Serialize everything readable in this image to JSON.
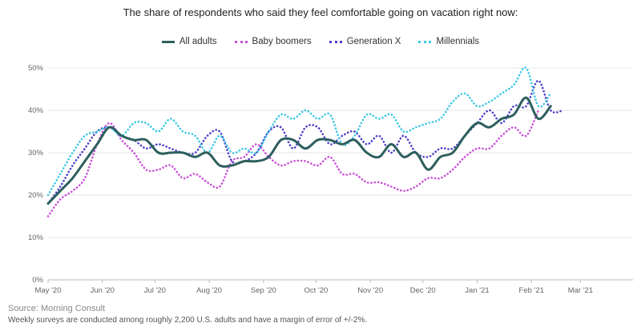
{
  "chart_data": {
    "type": "line",
    "title": "The share of respondents who said they feel comfortable going on vacation right now:",
    "ylim": [
      0,
      50
    ],
    "yticks": [
      0,
      10,
      20,
      30,
      40,
      50
    ],
    "ytick_labels": [
      "0%",
      "10%",
      "20%",
      "30%",
      "40%",
      "50%"
    ],
    "x_start": "2020-05-01",
    "x_end": "2021-03-31",
    "xticks": [
      {
        "date": "2020-05-01",
        "label": "May '20"
      },
      {
        "date": "2020-06-01",
        "label": "Jun '20"
      },
      {
        "date": "2020-07-01",
        "label": "Jul '20"
      },
      {
        "date": "2020-08-01",
        "label": "Aug '20"
      },
      {
        "date": "2020-09-01",
        "label": "Sep '20"
      },
      {
        "date": "2020-10-01",
        "label": "Oct '20"
      },
      {
        "date": "2020-11-01",
        "label": "Nov '20"
      },
      {
        "date": "2020-12-01",
        "label": "Dec '20"
      },
      {
        "date": "2021-01-01",
        "label": "Jan '21"
      },
      {
        "date": "2021-02-01",
        "label": "Feb '21"
      },
      {
        "date": "2021-03-01",
        "label": "Mar '21"
      }
    ],
    "grid": true,
    "legend_position": "top-center",
    "dates": [
      "2020-05-01",
      "2020-05-08",
      "2020-05-15",
      "2020-05-22",
      "2020-05-29",
      "2020-06-05",
      "2020-06-12",
      "2020-06-19",
      "2020-06-26",
      "2020-07-03",
      "2020-07-10",
      "2020-07-17",
      "2020-07-24",
      "2020-07-31",
      "2020-08-07",
      "2020-08-14",
      "2020-08-21",
      "2020-08-28",
      "2020-09-04",
      "2020-09-11",
      "2020-09-18",
      "2020-09-25",
      "2020-10-02",
      "2020-10-09",
      "2020-10-16",
      "2020-10-23",
      "2020-10-30",
      "2020-11-06",
      "2020-11-13",
      "2020-11-20",
      "2020-11-27",
      "2020-12-04",
      "2020-12-11",
      "2020-12-18",
      "2020-12-25",
      "2021-01-01",
      "2021-01-08",
      "2021-01-15",
      "2021-01-22",
      "2021-01-29",
      "2021-02-05",
      "2021-02-12",
      "2021-02-19",
      "2021-02-26",
      "2021-03-05",
      "2021-03-12",
      "2021-03-19"
    ],
    "series": [
      {
        "name": "All adults",
        "color": "#2d5f5d",
        "style": "solid",
        "values": [
          18,
          21,
          24,
          28,
          32,
          36,
          34,
          33,
          33,
          30,
          30,
          30,
          29,
          30,
          27,
          27,
          28,
          28,
          29,
          33,
          33,
          31,
          33,
          33,
          32,
          33,
          30,
          29,
          32,
          29,
          30,
          26,
          29,
          30,
          34,
          37,
          36,
          38,
          39,
          43,
          38,
          41,
          null,
          null,
          null,
          null,
          null
        ]
      },
      {
        "name": "Baby boomers",
        "color": "#c94fd8",
        "style": "dotted",
        "values": [
          15,
          19,
          21,
          24,
          32,
          37,
          33,
          30,
          26,
          26,
          27,
          24,
          25,
          23,
          22,
          28,
          29,
          32,
          29,
          27,
          28,
          28,
          27,
          29,
          25,
          25,
          23,
          23,
          22,
          21,
          22,
          24,
          24,
          26,
          29,
          31,
          31,
          34,
          36,
          34,
          40,
          null,
          null,
          null,
          null,
          null,
          null
        ]
      },
      {
        "name": "Generation X",
        "color": "#4b3fc8",
        "style": "dotted",
        "values": [
          18,
          22,
          27,
          31,
          35,
          36,
          34,
          33,
          31,
          32,
          31,
          30,
          30,
          34,
          35,
          28,
          28,
          30,
          35,
          36,
          31,
          36,
          36,
          32,
          34,
          35,
          32,
          34,
          30,
          34,
          30,
          29,
          31,
          31,
          34,
          37,
          40,
          37,
          41,
          41,
          47,
          40,
          40,
          null,
          null,
          null,
          null
        ]
      },
      {
        "name": "Millennials",
        "color": "#3ec8e6",
        "style": "dotted",
        "values": [
          20,
          25,
          30,
          34,
          35,
          36,
          34,
          37,
          37,
          35,
          38,
          35,
          34,
          30,
          34,
          30,
          31,
          30,
          35,
          39,
          38,
          40,
          38,
          39,
          32,
          34,
          39,
          38,
          39,
          35,
          36,
          37,
          38,
          42,
          44,
          41,
          42,
          44,
          46,
          50,
          41,
          44,
          null,
          null,
          null,
          null,
          null
        ]
      }
    ]
  },
  "footer": {
    "source": "Source: Morning Consult",
    "note": "Weekly surveys are conducted among roughly 2,200 U.S. adults and have a margin of error of +/-2%."
  }
}
